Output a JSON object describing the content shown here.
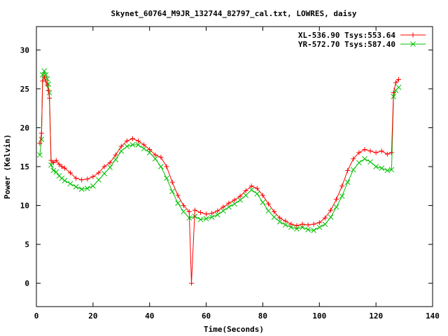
{
  "chart_data": {
    "type": "scatter",
    "title": "Skynet_60764_M9JR_132744_82797_cal.txt, LOWRES, daisy",
    "xlabel": "Time(Seconds)",
    "ylabel": "Power (Kelvin)",
    "xlim": [
      0,
      140
    ],
    "ylim": [
      -3,
      33
    ],
    "xticks": [
      0,
      20,
      40,
      60,
      80,
      100,
      120,
      140
    ],
    "yticks": [
      0,
      5,
      10,
      15,
      20,
      25,
      30
    ],
    "legend_position": "top-right",
    "grid": false,
    "series": [
      {
        "name": "XL-536.90 Tsys:553.64",
        "color": "#ff0000",
        "marker": "plus",
        "points": [
          [
            1.2,
            18.0
          ],
          [
            1.8,
            19.3
          ],
          [
            2.2,
            26.0
          ],
          [
            2.8,
            26.5
          ],
          [
            3.3,
            26.0
          ],
          [
            3.8,
            25.5
          ],
          [
            4.2,
            24.8
          ],
          [
            4.6,
            23.8
          ],
          [
            5.2,
            15.8
          ],
          [
            6,
            15.5
          ],
          [
            7,
            15.8
          ],
          [
            8,
            15.3
          ],
          [
            9,
            15.0
          ],
          [
            10,
            14.8
          ],
          [
            12,
            14.2
          ],
          [
            14,
            13.5
          ],
          [
            16,
            13.3
          ],
          [
            18,
            13.4
          ],
          [
            20,
            13.7
          ],
          [
            22,
            14.2
          ],
          [
            24,
            15.0
          ],
          [
            26,
            15.5
          ],
          [
            28,
            16.5
          ],
          [
            30,
            17.6
          ],
          [
            32,
            18.3
          ],
          [
            34,
            18.6
          ],
          [
            36,
            18.3
          ],
          [
            38,
            17.8
          ],
          [
            40,
            17.2
          ],
          [
            42,
            16.5
          ],
          [
            44,
            16.2
          ],
          [
            46,
            15.0
          ],
          [
            48,
            13.0
          ],
          [
            50,
            11.3
          ],
          [
            52,
            10.0
          ],
          [
            54,
            9.2
          ],
          [
            54.8,
            0.0
          ],
          [
            56,
            9.4
          ],
          [
            58,
            9.1
          ],
          [
            60,
            8.9
          ],
          [
            62,
            9.0
          ],
          [
            64,
            9.3
          ],
          [
            66,
            9.8
          ],
          [
            68,
            10.3
          ],
          [
            70,
            10.7
          ],
          [
            72,
            11.2
          ],
          [
            74,
            11.9
          ],
          [
            76,
            12.5
          ],
          [
            78,
            12.2
          ],
          [
            80,
            11.3
          ],
          [
            82,
            10.2
          ],
          [
            84,
            9.2
          ],
          [
            86,
            8.4
          ],
          [
            88,
            8.0
          ],
          [
            90,
            7.6
          ],
          [
            92,
            7.4
          ],
          [
            94,
            7.6
          ],
          [
            96,
            7.5
          ],
          [
            98,
            7.6
          ],
          [
            100,
            7.8
          ],
          [
            102,
            8.4
          ],
          [
            104,
            9.4
          ],
          [
            106,
            10.8
          ],
          [
            108,
            12.5
          ],
          [
            110,
            14.5
          ],
          [
            112,
            16.0
          ],
          [
            114,
            16.8
          ],
          [
            116,
            17.2
          ],
          [
            118,
            17.0
          ],
          [
            120,
            16.8
          ],
          [
            122,
            17.0
          ],
          [
            124,
            16.6
          ],
          [
            125.5,
            16.8
          ],
          [
            126.2,
            24.5
          ],
          [
            127,
            25.8
          ],
          [
            128,
            26.2
          ]
        ]
      },
      {
        "name": "YR-572.70 Tsys:587.40",
        "color": "#00c000",
        "marker": "x",
        "points": [
          [
            1.2,
            16.5
          ],
          [
            1.8,
            18.5
          ],
          [
            2.2,
            26.8
          ],
          [
            2.8,
            27.3
          ],
          [
            3.3,
            26.8
          ],
          [
            3.8,
            26.3
          ],
          [
            4.2,
            25.6
          ],
          [
            4.6,
            24.5
          ],
          [
            5.2,
            15.2
          ],
          [
            6,
            14.5
          ],
          [
            7,
            14.3
          ],
          [
            8,
            13.8
          ],
          [
            9,
            13.5
          ],
          [
            10,
            13.2
          ],
          [
            12,
            12.8
          ],
          [
            14,
            12.4
          ],
          [
            16,
            12.1
          ],
          [
            18,
            12.2
          ],
          [
            20,
            12.5
          ],
          [
            22,
            13.3
          ],
          [
            24,
            14.1
          ],
          [
            26,
            14.9
          ],
          [
            28,
            15.9
          ],
          [
            30,
            17.0
          ],
          [
            32,
            17.6
          ],
          [
            34,
            17.8
          ],
          [
            36,
            17.8
          ],
          [
            38,
            17.3
          ],
          [
            40,
            16.8
          ],
          [
            42,
            16.0
          ],
          [
            44,
            15.0
          ],
          [
            46,
            13.5
          ],
          [
            48,
            11.8
          ],
          [
            50,
            10.3
          ],
          [
            52,
            9.2
          ],
          [
            54,
            8.4
          ],
          [
            56,
            8.6
          ],
          [
            58,
            8.2
          ],
          [
            60,
            8.3
          ],
          [
            62,
            8.5
          ],
          [
            64,
            8.8
          ],
          [
            66,
            9.3
          ],
          [
            68,
            9.8
          ],
          [
            70,
            10.2
          ],
          [
            72,
            10.7
          ],
          [
            74,
            11.3
          ],
          [
            76,
            12.0
          ],
          [
            78,
            11.5
          ],
          [
            80,
            10.4
          ],
          [
            82,
            9.3
          ],
          [
            84,
            8.5
          ],
          [
            86,
            7.9
          ],
          [
            88,
            7.5
          ],
          [
            90,
            7.2
          ],
          [
            92,
            7.0
          ],
          [
            94,
            7.2
          ],
          [
            96,
            6.9
          ],
          [
            98,
            6.8
          ],
          [
            100,
            7.2
          ],
          [
            102,
            7.6
          ],
          [
            104,
            8.5
          ],
          [
            106,
            9.8
          ],
          [
            108,
            11.2
          ],
          [
            110,
            13.0
          ],
          [
            112,
            14.6
          ],
          [
            114,
            15.5
          ],
          [
            116,
            16.0
          ],
          [
            118,
            15.6
          ],
          [
            120,
            15.0
          ],
          [
            122,
            14.8
          ],
          [
            124,
            14.5
          ],
          [
            125.5,
            14.6
          ],
          [
            126.2,
            24.0
          ],
          [
            127,
            24.8
          ],
          [
            128,
            25.2
          ]
        ]
      }
    ]
  }
}
